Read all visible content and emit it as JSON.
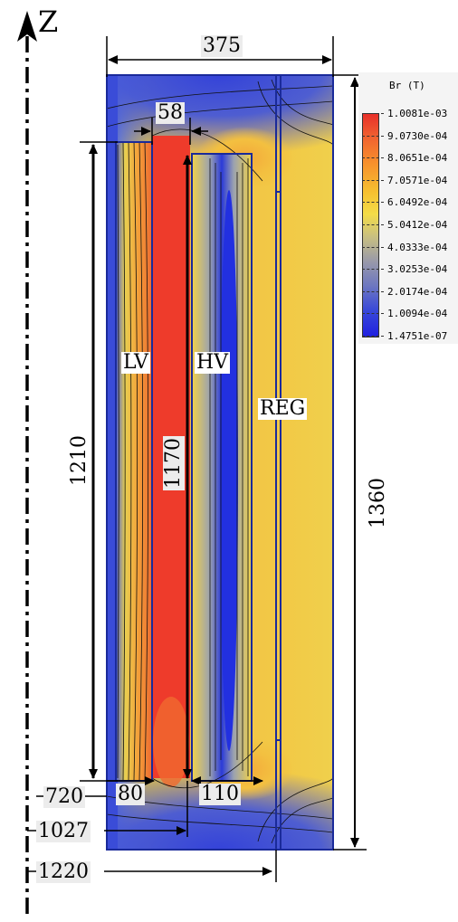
{
  "axis_label": "Z",
  "legend": {
    "title": "Br (T)",
    "ticks": [
      "1.0081e-03",
      "9.0730e-04",
      "8.0651e-04",
      "7.0571e-04",
      "6.0492e-04",
      "5.0412e-04",
      "4.0333e-04",
      "3.0253e-04",
      "2.0174e-04",
      "1.0094e-04",
      "1.4751e-07"
    ]
  },
  "regions": {
    "lv": "LV",
    "hv": "HV",
    "reg": "REG"
  },
  "dimensions": {
    "width_total": "375",
    "gap": "58",
    "height_lv": "1210",
    "height_hv": "1170",
    "height_total": "1360",
    "lv_width": "80",
    "hv_width": "110",
    "r_lv": "720",
    "r_hv": "1027",
    "r_reg": "1220"
  },
  "colors": {
    "low": "#2020e0",
    "mid": "#f3dc48",
    "high": "#e8302a",
    "outline": "#1a2a9a"
  }
}
